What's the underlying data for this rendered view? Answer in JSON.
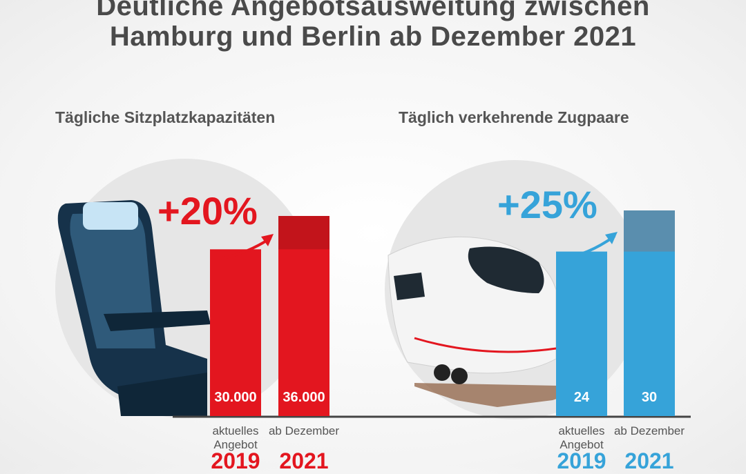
{
  "title_line1": "Deutliche Angebotsausweitung zwischen",
  "title_line2": "Hamburg und Berlin ab Dezember 2021",
  "colors": {
    "red": "#e3161f",
    "red_dark": "#c2141b",
    "blue": "#36a3d9",
    "blue_dark": "#5a8eae",
    "text": "#4a4a4a",
    "navy": "#16324a"
  },
  "icons": [
    "seat-icon",
    "train-icon",
    "arrow-up-right-icon"
  ],
  "chart_data": [
    {
      "type": "bar",
      "title": "Tägliche Sitzplatzkapazitäten",
      "categories": [
        "2019",
        "2021"
      ],
      "category_notes": [
        "aktuelles Angebot",
        "ab Dezember"
      ],
      "values": [
        30000,
        36000
      ],
      "value_labels": [
        "30.000",
        "36.000"
      ],
      "change_label": "+20%",
      "color": "#e3161f"
    },
    {
      "type": "bar",
      "title": "Täglich verkehrende Zugpaare",
      "categories": [
        "2019",
        "2021"
      ],
      "category_notes": [
        "aktuelles Angebot",
        "ab Dezember"
      ],
      "values": [
        24,
        30
      ],
      "value_labels": [
        "24",
        "30"
      ],
      "change_label": "+25%",
      "color": "#36a3d9"
    }
  ]
}
